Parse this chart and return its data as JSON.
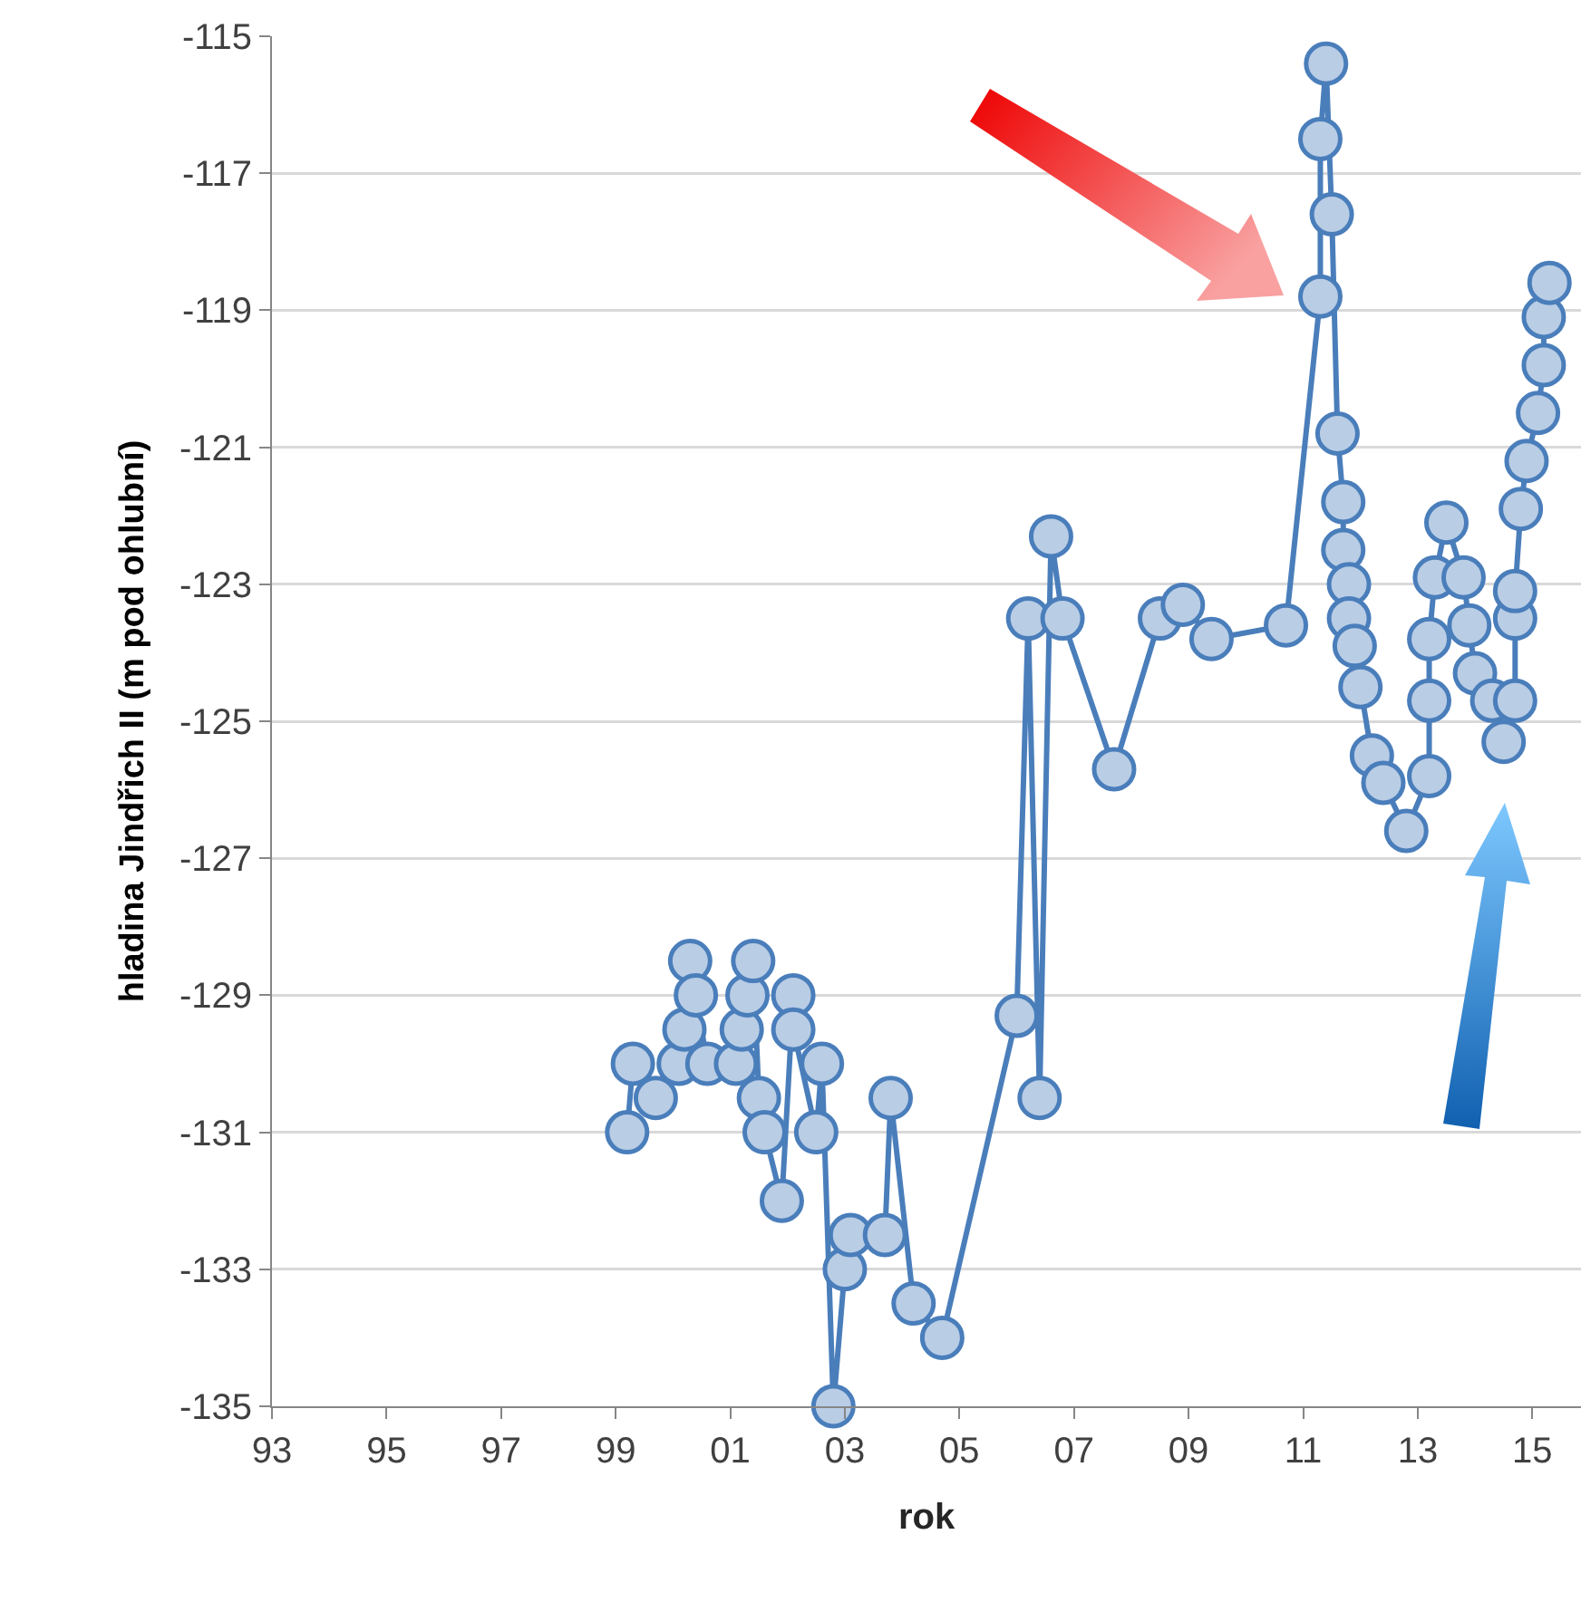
{
  "chart_data": {
    "type": "line",
    "xlabel": "rok",
    "ylabel": "hladina Jindřich II (m pod ohlubní)",
    "x": [
      1999.2,
      1999.3,
      1999.7,
      2000.1,
      2000.2,
      2000.3,
      2000.4,
      2000.6,
      2001.1,
      2001.2,
      2001.3,
      2001.4,
      2001.5,
      2001.6,
      2001.9,
      2002.1,
      2002.1,
      2002.5,
      2002.6,
      2002.8,
      2003.0,
      2003.1,
      2003.7,
      2003.8,
      2004.2,
      2004.7,
      2006.0,
      2006.2,
      2006.4,
      2006.6,
      2006.8,
      2007.7,
      2008.5,
      2008.9,
      2009.4,
      2010.7,
      2011.3,
      2011.3,
      2011.4,
      2011.5,
      2011.6,
      2011.7,
      2011.7,
      2011.8,
      2011.8,
      2011.9,
      2012.0,
      2012.2,
      2012.4,
      2012.8,
      2013.2,
      2013.2,
      2013.2,
      2013.3,
      2013.5,
      2013.8,
      2013.9,
      2014.0,
      2014.3,
      2014.5,
      2014.7,
      2014.7,
      2014.7,
      2014.8,
      2014.9,
      2015.1,
      2015.2,
      2015.2,
      2015.3
    ],
    "series": [
      {
        "color": "#4a7ebb",
        "values": [
          -131.0,
          -130.0,
          -130.5,
          -130.0,
          -129.5,
          -128.5,
          -129.0,
          -130.0,
          -130.0,
          -129.5,
          -129.0,
          -128.5,
          -130.5,
          -131.0,
          -132.0,
          -129.0,
          -129.5,
          -131.0,
          -130.0,
          -135.0,
          -133.0,
          -132.5,
          -132.5,
          -130.5,
          -133.5,
          -134.0,
          -129.3,
          -123.5,
          -130.5,
          -122.3,
          -123.5,
          -125.7,
          -123.5,
          -123.3,
          -123.8,
          -123.6,
          -118.8,
          -116.5,
          -115.4,
          -117.6,
          -120.8,
          -121.8,
          -122.5,
          -123.0,
          -123.5,
          -123.9,
          -124.5,
          -125.5,
          -125.9,
          -126.6,
          -125.8,
          -124.7,
          -123.8,
          -122.9,
          -122.1,
          -122.9,
          -123.6,
          -124.3,
          -124.7,
          -125.3,
          -124.7,
          -123.5,
          -123.1,
          -121.9,
          -121.2,
          -120.5,
          -119.8,
          -119.1,
          -118.6
        ]
      }
    ],
    "xlim": [
      1993,
      2015.85
    ],
    "xticks": [
      {
        "value": 1993,
        "label": "93"
      },
      {
        "value": 1995,
        "label": "95"
      },
      {
        "value": 1997,
        "label": "97"
      },
      {
        "value": 1999,
        "label": "99"
      },
      {
        "value": 2001,
        "label": "01"
      },
      {
        "value": 2003,
        "label": "03"
      },
      {
        "value": 2005,
        "label": "05"
      },
      {
        "value": 2007,
        "label": "07"
      },
      {
        "value": 2009,
        "label": "09"
      },
      {
        "value": 2011,
        "label": "11"
      },
      {
        "value": 2013,
        "label": "13"
      },
      {
        "value": 2015,
        "label": "15"
      }
    ],
    "ylim": [
      -135,
      -115
    ],
    "yticks": [
      -135,
      -133,
      -131,
      -129,
      -127,
      -125,
      -123,
      -121,
      -119,
      -117,
      -115
    ],
    "grid": "y",
    "marker": "circle",
    "line_style": "solid"
  }
}
